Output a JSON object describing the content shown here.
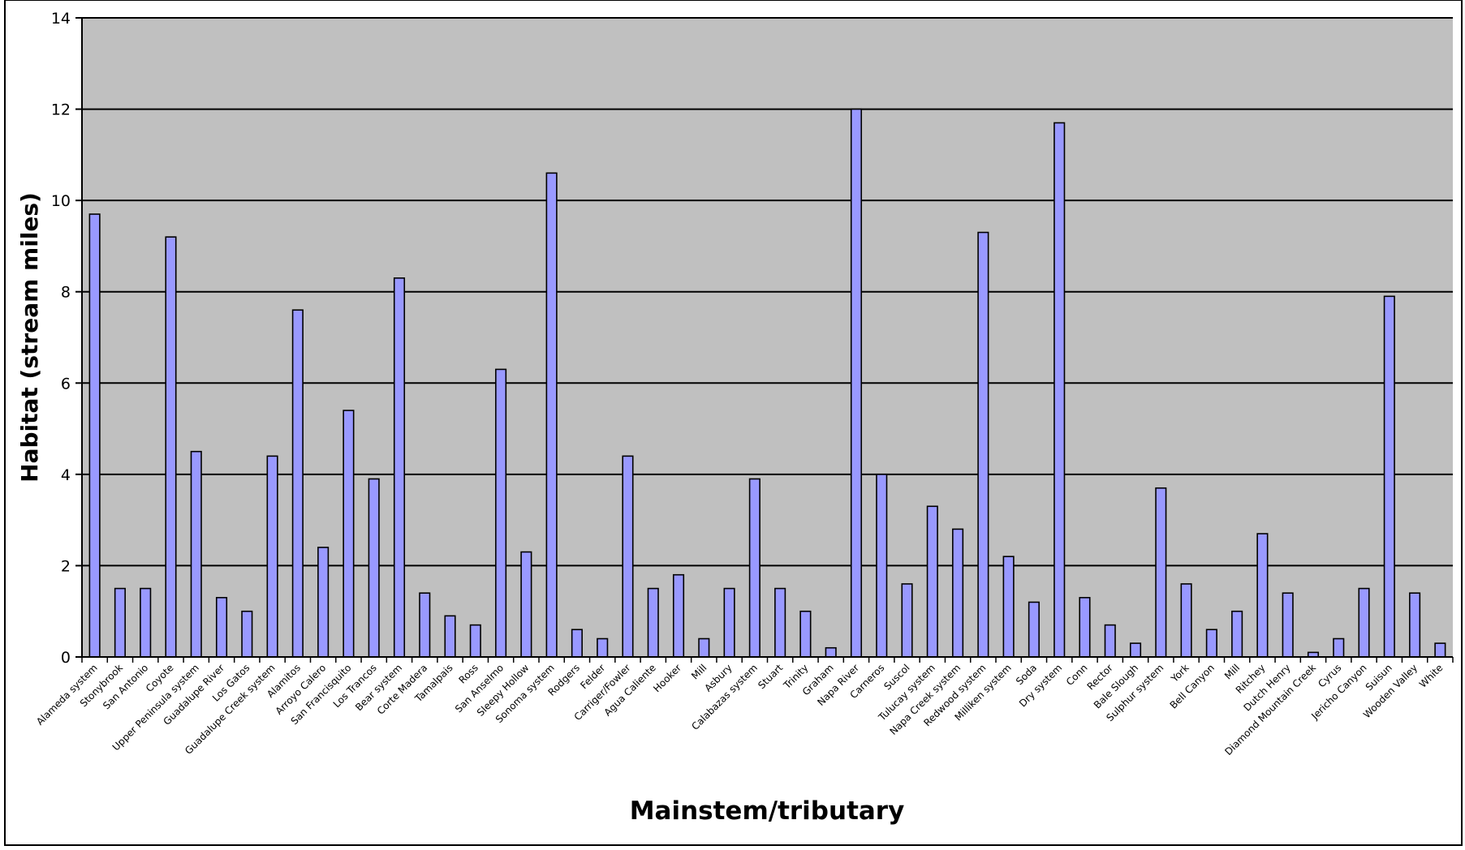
{
  "chart_data": {
    "type": "bar",
    "title": "",
    "xlabel": "Mainstem/tributary",
    "ylabel": "Habitat (stream miles)",
    "ylim": [
      0,
      14
    ],
    "yticks": [
      0,
      2,
      4,
      6,
      8,
      10,
      12,
      14
    ],
    "grid": true,
    "legend": "none",
    "colors": {
      "plot_bg": "#c0c0c0",
      "bar_fill": "#9999ff",
      "bar_stroke": "#000000",
      "grid": "#000000"
    },
    "categories": [
      "Alameda system",
      "Stonybrook",
      "San Antonio",
      "Coyote",
      "Upper Peninsula system",
      "Guadalupe River",
      "Los Gatos",
      "Guadalupe Creek system",
      "Alamitos",
      "Arroyo Calero",
      "San Francisquito",
      "Los Trancos",
      "Bear system",
      "Corte Madera",
      "Tamalpais",
      "Ross",
      "San Anselmo",
      "Sleepy Hollow",
      "Sonoma system",
      "Rodgers",
      "Felder",
      "Carriger/Fowler",
      "Agua Caliente",
      "Hooker",
      "Mill",
      "Asbury",
      "Calabazas system",
      "Stuart",
      "Trinity",
      "Graham",
      "Napa River",
      "Carneros",
      "Suscol",
      "Tulucay system",
      "Napa Creek system",
      "Redwood system",
      "Milliken system",
      "Soda",
      "Dry system",
      "Conn",
      "Rector",
      "Bale Slough",
      "Sulphur system",
      "York",
      "Bell Canyon",
      "Mill",
      "Ritchey",
      "Dutch Henry",
      "Diamond Mountain Creek",
      "Cyrus",
      "Jericho Canyon",
      "Suisun",
      "Wooden Valley",
      "White"
    ],
    "values": [
      9.7,
      1.5,
      1.5,
      9.2,
      4.5,
      1.3,
      1.0,
      4.4,
      7.6,
      2.4,
      5.4,
      3.9,
      8.3,
      1.4,
      0.9,
      0.7,
      6.3,
      2.3,
      10.6,
      0.6,
      0.4,
      4.4,
      1.5,
      1.8,
      0.4,
      1.5,
      3.9,
      1.5,
      1.0,
      0.2,
      12.0,
      4.0,
      1.6,
      3.3,
      2.8,
      9.3,
      2.2,
      1.2,
      11.7,
      1.3,
      0.7,
      0.3,
      3.7,
      1.6,
      0.6,
      1.0,
      2.7,
      1.4,
      0.1,
      0.4,
      1.5,
      7.9,
      1.4,
      0.3
    ]
  }
}
